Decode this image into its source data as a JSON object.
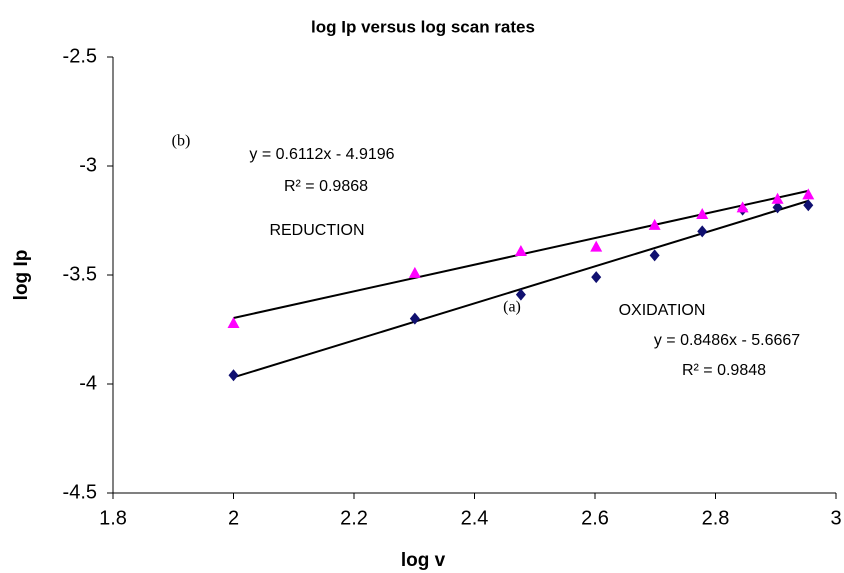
{
  "chart_data": {
    "type": "scatter",
    "title": "log Ip versus log scan rates",
    "x_label": "log v",
    "y_label": "log Ip",
    "x": [
      2,
      2.301,
      2.477,
      2.602,
      2.699,
      2.778,
      2.845,
      2.903,
      2.954
    ],
    "series": [
      {
        "name": "OXIDATION",
        "color": "#101070",
        "marker": "diamond",
        "values": [
          -3.96,
          -3.7,
          -3.59,
          -3.51,
          -3.41,
          -3.3,
          -3.2,
          -3.19,
          -3.18
        ],
        "trendline": {
          "slope": 0.8486,
          "intercept": -5.6667
        }
      },
      {
        "name": "REDUCTION",
        "color": "#ff00ff",
        "marker": "triangle",
        "values": [
          -3.72,
          -3.49,
          -3.39,
          -3.37,
          -3.27,
          -3.22,
          -3.19,
          -3.15,
          -3.13
        ],
        "trendline": {
          "slope": 0.6112,
          "intercept": -4.9196
        }
      }
    ],
    "annotations": [
      "(b)",
      "y = 0.6112x - 4.9196",
      "R² = 0.9868",
      "REDUCTION",
      "(a)",
      "OXIDATION",
      "y = 0.8486x - 5.6667",
      "R² = 0.9848"
    ],
    "xlim": [
      1.8,
      3
    ],
    "xticks": [
      1.8,
      2,
      2.2,
      2.4,
      2.6,
      2.8,
      3
    ],
    "ylim": [
      -4.5,
      -2.5
    ],
    "yticks": [
      -2.5,
      -3,
      -3.5,
      -4,
      -4.5
    ],
    "grid": false
  }
}
